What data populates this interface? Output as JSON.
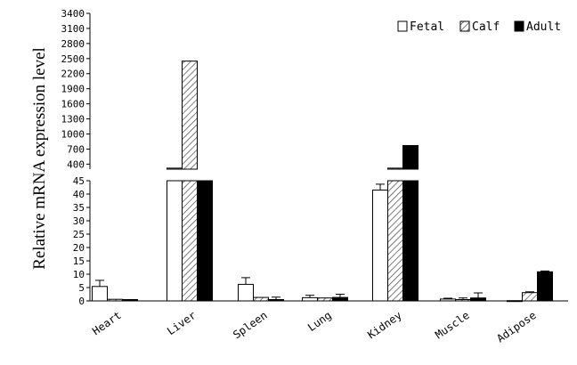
{
  "chart_data": {
    "type": "bar",
    "ylabel": "Relative mRNA expression level",
    "categories": [
      "Heart",
      "Liver",
      "Spleen",
      "Lung",
      "Kidney",
      "Muscle",
      "Adipose"
    ],
    "series": [
      {
        "name": "Fetal",
        "values": [
          5.4,
          320,
          6.2,
          1.2,
          41.5,
          0.7,
          0.1
        ],
        "errors": [
          2.3,
          0,
          2.5,
          0.9,
          2.2,
          0.3,
          0
        ],
        "pattern": "white"
      },
      {
        "name": "Calf",
        "values": [
          0.6,
          2450,
          1.3,
          1.1,
          320,
          0.5,
          3.1
        ],
        "errors": [
          0,
          0,
          0,
          0,
          0,
          0.6,
          0.3
        ],
        "pattern": "hatched"
      },
      {
        "name": "Adult",
        "values": [
          0.5,
          280,
          0.5,
          1.3,
          770,
          1.1,
          10.9
        ],
        "errors": [
          0,
          0,
          0.9,
          1.2,
          0,
          1.9,
          0.3
        ],
        "pattern": "black"
      }
    ],
    "axis_break": {
      "lower_range": [
        0,
        45
      ],
      "upper_range": [
        300,
        3400
      ]
    },
    "lower_ticks": [
      "0",
      "5",
      "10",
      "15",
      "20",
      "25",
      "30",
      "35",
      "40",
      "45"
    ],
    "upper_ticks": [
      "400",
      "700",
      "1000",
      "1300",
      "1600",
      "1900",
      "2200",
      "2500",
      "2800",
      "3100",
      "3400"
    ],
    "legend": {
      "placement": "top-right"
    },
    "grid": false
  }
}
